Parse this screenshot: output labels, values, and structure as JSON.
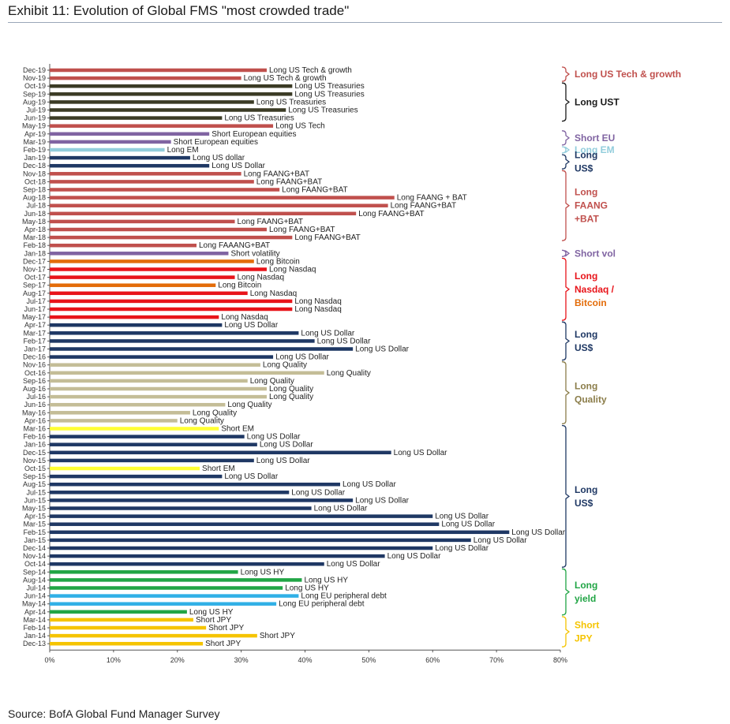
{
  "title": "Exhibit 11: Evolution of Global FMS \"most crowded trade\"",
  "source": "Source: BofA Global Fund Manager Survey",
  "colors": {
    "tech": "#c0504d",
    "ust": "#3b3b25",
    "short_eu": "#8064a2",
    "em": "#92cddc",
    "usd": "#1f3864",
    "faang": "#c0504d",
    "shortvol": "#8064a2",
    "nasdaq": "#e8141a",
    "bitcoin": "#e36c09",
    "quality": "#c4bd97",
    "short_em": "#ffff33",
    "hy": "#21a545",
    "eu_debt": "#31b0e6",
    "jpy": "#f5c400"
  },
  "chart_data": {
    "type": "bar",
    "orientation": "horizontal",
    "xlim": [
      0,
      80
    ],
    "xticks": [
      "0%",
      "10%",
      "20%",
      "30%",
      "40%",
      "50%",
      "60%",
      "70%",
      "80%"
    ],
    "bars": [
      {
        "date": "Dec-19",
        "value": 34,
        "label": "Long US Tech & growth",
        "color": "tech"
      },
      {
        "date": "Nov-19",
        "value": 30,
        "label": "Long US Tech & growth",
        "color": "tech"
      },
      {
        "date": "Oct-19",
        "value": 38,
        "label": "Long US Treasuries",
        "color": "ust"
      },
      {
        "date": "Sep-19",
        "value": 38,
        "label": "Long US Treasuries",
        "color": "ust"
      },
      {
        "date": "Aug-19",
        "value": 32,
        "label": "Long US Treasuries",
        "color": "ust"
      },
      {
        "date": "Jul-19",
        "value": 37,
        "label": "Long US Treasuries",
        "color": "ust"
      },
      {
        "date": "Jun-19",
        "value": 27,
        "label": "Long US Treasuries",
        "color": "ust"
      },
      {
        "date": "May-19",
        "value": 35,
        "label": "Long US Tech",
        "color": "tech"
      },
      {
        "date": "Apr-19",
        "value": 25,
        "label": "Short European equities",
        "color": "short_eu"
      },
      {
        "date": "Mar-19",
        "value": 19,
        "label": "Short European equities",
        "color": "short_eu"
      },
      {
        "date": "Feb-19",
        "value": 18,
        "label": "Long EM",
        "color": "em"
      },
      {
        "date": "Jan-19",
        "value": 22,
        "label": "Long US dollar",
        "color": "usd"
      },
      {
        "date": "Dec-18",
        "value": 25,
        "label": "Long US Dollar",
        "color": "usd"
      },
      {
        "date": "Nov-18",
        "value": 30,
        "label": "Long FAANG+BAT",
        "color": "faang"
      },
      {
        "date": "Oct-18",
        "value": 32,
        "label": "Long FAANG+BAT",
        "color": "faang"
      },
      {
        "date": "Sep-18",
        "value": 36,
        "label": "Long FAANG+BAT",
        "color": "faang"
      },
      {
        "date": "Aug-18",
        "value": 54,
        "label": "Long FAANG + BAT",
        "color": "faang"
      },
      {
        "date": "Jul-18",
        "value": 53,
        "label": "Long FAANG+BAT",
        "color": "faang"
      },
      {
        "date": "Jun-18",
        "value": 48,
        "label": "Long FAANG+BAT",
        "color": "faang"
      },
      {
        "date": "May-18",
        "value": 29,
        "label": "Long FAANG+BAT",
        "color": "faang"
      },
      {
        "date": "Apr-18",
        "value": 34,
        "label": "Long FAANG+BAT",
        "color": "faang"
      },
      {
        "date": "Mar-18",
        "value": 38,
        "label": "Long FAANG+BAT",
        "color": "faang"
      },
      {
        "date": "Feb-18",
        "value": 23,
        "label": "Long FAAANG+BAT",
        "color": "faang"
      },
      {
        "date": "Jan-18",
        "value": 28,
        "label": "Short volatility",
        "color": "shortvol"
      },
      {
        "date": "Dec-17",
        "value": 32,
        "label": "Long Bitcoin",
        "color": "bitcoin"
      },
      {
        "date": "Nov-17",
        "value": 34,
        "label": "Long Nasdaq",
        "color": "nasdaq"
      },
      {
        "date": "Oct-17",
        "value": 29,
        "label": "Long Nasdaq",
        "color": "nasdaq"
      },
      {
        "date": "Sep-17",
        "value": 26,
        "label": "Long Bitcoin",
        "color": "bitcoin"
      },
      {
        "date": "Aug-17",
        "value": 31,
        "label": "Long Nasdaq",
        "color": "nasdaq"
      },
      {
        "date": "Jul-17",
        "value": 38,
        "label": "Long Nasdaq",
        "color": "nasdaq"
      },
      {
        "date": "Jun-17",
        "value": 38,
        "label": "Long Nasdaq",
        "color": "nasdaq"
      },
      {
        "date": "May-17",
        "value": 26.5,
        "label": "Long Nasdaq",
        "color": "nasdaq"
      },
      {
        "date": "Apr-17",
        "value": 27,
        "label": "Long US Dollar",
        "color": "usd"
      },
      {
        "date": "Mar-17",
        "value": 39,
        "label": "Long US Dollar",
        "color": "usd"
      },
      {
        "date": "Feb-17",
        "value": 41.5,
        "label": "Long US Dollar",
        "color": "usd"
      },
      {
        "date": "Jan-17",
        "value": 47.5,
        "label": "Long US Dollar",
        "color": "usd"
      },
      {
        "date": "Dec-16",
        "value": 35,
        "label": "Long US Dollar",
        "color": "usd"
      },
      {
        "date": "Nov-16",
        "value": 33,
        "label": "Long Quality",
        "color": "quality"
      },
      {
        "date": "Oct-16",
        "value": 43,
        "label": "Long Quality",
        "color": "quality"
      },
      {
        "date": "Sep-16",
        "value": 31,
        "label": "Long Quality",
        "color": "quality"
      },
      {
        "date": "Aug-16",
        "value": 34,
        "label": "Long Quality",
        "color": "quality"
      },
      {
        "date": "Jul-16",
        "value": 34,
        "label": "Long Quality",
        "color": "quality"
      },
      {
        "date": "Jun-16",
        "value": 27.5,
        "label": "Long Quality",
        "color": "quality"
      },
      {
        "date": "May-16",
        "value": 22,
        "label": "Long Quality",
        "color": "quality"
      },
      {
        "date": "Apr-16",
        "value": 20,
        "label": "Long Quality",
        "color": "quality"
      },
      {
        "date": "Mar-16",
        "value": 26.5,
        "label": "Short EM",
        "color": "short_em"
      },
      {
        "date": "Feb-16",
        "value": 30.5,
        "label": "Long US Dollar",
        "color": "usd"
      },
      {
        "date": "Jan-16",
        "value": 32.5,
        "label": "Long US Dollar",
        "color": "usd"
      },
      {
        "date": "Dec-15",
        "value": 53.5,
        "label": "Long US Dollar",
        "color": "usd"
      },
      {
        "date": "Nov-15",
        "value": 32,
        "label": "Long US Dollar",
        "color": "usd"
      },
      {
        "date": "Oct-15",
        "value": 23.5,
        "label": "Short EM",
        "color": "short_em"
      },
      {
        "date": "Sep-15",
        "value": 27,
        "label": "Long US Dollar",
        "color": "usd"
      },
      {
        "date": "Aug-15",
        "value": 45.5,
        "label": "Long US Dollar",
        "color": "usd"
      },
      {
        "date": "Jul-15",
        "value": 37.5,
        "label": "Long US Dollar",
        "color": "usd"
      },
      {
        "date": "Jun-15",
        "value": 47.5,
        "label": "Long US Dollar",
        "color": "usd"
      },
      {
        "date": "May-15",
        "value": 41,
        "label": "Long US Dollar",
        "color": "usd"
      },
      {
        "date": "Apr-15",
        "value": 60,
        "label": "Long US Dollar",
        "color": "usd"
      },
      {
        "date": "Mar-15",
        "value": 61,
        "label": "Long US Dollar",
        "color": "usd"
      },
      {
        "date": "Feb-15",
        "value": 72,
        "label": "Long US Dollar",
        "color": "usd"
      },
      {
        "date": "Jan-15",
        "value": 66,
        "label": "Long US Dollar",
        "color": "usd"
      },
      {
        "date": "Dec-14",
        "value": 60,
        "label": "Long US Dollar",
        "color": "usd"
      },
      {
        "date": "Nov-14",
        "value": 52.5,
        "label": "Long US Dollar",
        "color": "usd"
      },
      {
        "date": "Oct-14",
        "value": 43,
        "label": "Long US Dollar",
        "color": "usd"
      },
      {
        "date": "Sep-14",
        "value": 29.5,
        "label": "Long US HY",
        "color": "hy"
      },
      {
        "date": "Aug-14",
        "value": 39.5,
        "label": "Long US HY",
        "color": "hy"
      },
      {
        "date": "Jul-14",
        "value": 36.5,
        "label": "Long US HY",
        "color": "hy"
      },
      {
        "date": "Jun-14",
        "value": 39,
        "label": "Long EU peripheral debt",
        "color": "eu_debt"
      },
      {
        "date": "May-14",
        "value": 35.5,
        "label": "Long EU peripheral debt",
        "color": "eu_debt"
      },
      {
        "date": "Apr-14",
        "value": 21.5,
        "label": "Long US HY",
        "color": "hy"
      },
      {
        "date": "Mar-14",
        "value": 22.5,
        "label": "Short JPY",
        "color": "jpy"
      },
      {
        "date": "Feb-14",
        "value": 24.5,
        "label": "Short JPY",
        "color": "jpy"
      },
      {
        "date": "Jan-14",
        "value": 32.5,
        "label": "Short JPY",
        "color": "jpy"
      },
      {
        "date": "Dec-13",
        "value": 24,
        "label": "Short JPY",
        "color": "jpy"
      }
    ],
    "groups": [
      {
        "lines": [
          "Long US Tech & growth"
        ],
        "color": "tech",
        "from": 0,
        "to": 1
      },
      {
        "lines": [
          "Long UST"
        ],
        "color": "#1a1a1a",
        "from": 2,
        "to": 6
      },
      {
        "lines": [
          "Short EU"
        ],
        "color": "short_eu",
        "from": 8,
        "to": 9
      },
      {
        "lines": [
          "Long EM"
        ],
        "color": "em",
        "from": 10,
        "to": 10
      },
      {
        "lines": [
          "Long",
          "US$"
        ],
        "color": "usd",
        "from": 11,
        "to": 12
      },
      {
        "lines": [
          "Long",
          "FAANG",
          "+BAT"
        ],
        "color": "faang",
        "from": 13,
        "to": 21
      },
      {
        "lines": [
          "Short vol"
        ],
        "color": "shortvol",
        "from": 23,
        "to": 23
      },
      {
        "lines": [
          "Long",
          "Nasdaq /",
          "Bitcoin"
        ],
        "colors": [
          "nasdaq",
          "nasdaq",
          "bitcoin"
        ],
        "color": "nasdaq",
        "from": 24,
        "to": 31
      },
      {
        "lines": [
          "Long",
          "US$"
        ],
        "color": "usd",
        "from": 32,
        "to": 36
      },
      {
        "lines": [
          "Long",
          "Quality"
        ],
        "color": "#8b7d4a",
        "from": 37,
        "to": 44
      },
      {
        "lines": [
          "Long",
          "US$"
        ],
        "color": "usd",
        "from": 45,
        "to": 62
      },
      {
        "lines": [
          "Long",
          "yield"
        ],
        "color": "hy",
        "from": 63,
        "to": 68
      },
      {
        "lines": [
          "Short",
          "JPY"
        ],
        "color": "jpy",
        "from": 69,
        "to": 72
      }
    ]
  }
}
